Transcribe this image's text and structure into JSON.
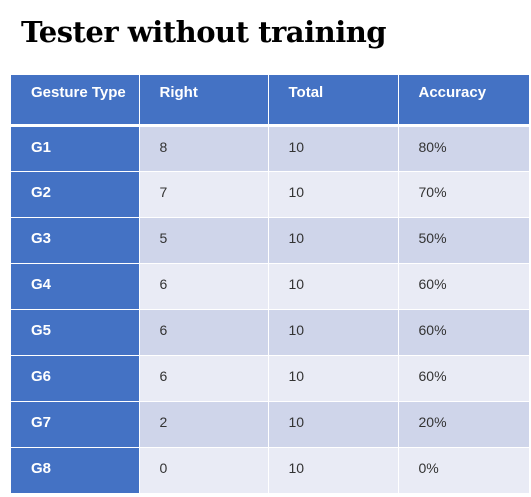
{
  "title": "Tester without training",
  "table": {
    "headers": [
      "Gesture Type",
      "Right",
      "Total",
      "Accuracy"
    ],
    "rows": [
      [
        "G1",
        "8",
        "10",
        "80%"
      ],
      [
        "G2",
        "7",
        "10",
        "70%"
      ],
      [
        "G3",
        "5",
        "10",
        "50%"
      ],
      [
        "G4",
        "6",
        "10",
        "60%"
      ],
      [
        "G5",
        "6",
        "10",
        "60%"
      ],
      [
        "G6",
        "6",
        "10",
        "60%"
      ],
      [
        "G7",
        "2",
        "10",
        "20%"
      ],
      [
        "G8",
        "0",
        "10",
        "0%"
      ]
    ]
  },
  "colors": {
    "header_bg": "#4472c4",
    "row_band_dark": "#cfd5ea",
    "row_band_light": "#e9ebf5",
    "header_text": "#ffffff"
  }
}
